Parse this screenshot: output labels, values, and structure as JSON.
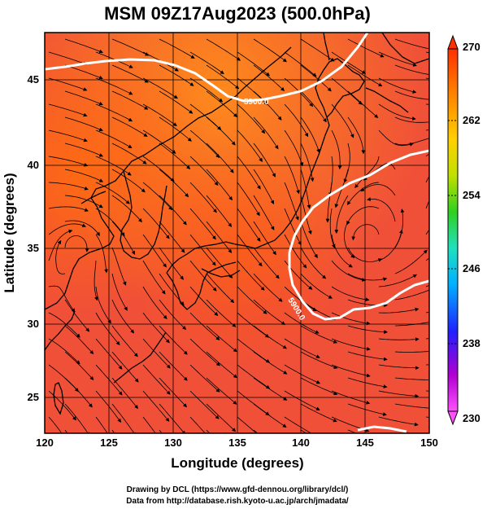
{
  "title": "MSM 09Z17Aug2023 (500.0hPa)",
  "xlabel": "Longitude (degrees)",
  "ylabel": "Latitude  (degrees)",
  "x_ticks": [
    "120",
    "125",
    "130",
    "135",
    "140",
    "145",
    "150"
  ],
  "y_ticks": [
    "25",
    "30",
    "35",
    "40",
    "45"
  ],
  "colorbar": {
    "ticks": [
      "270",
      "262",
      "254",
      "246",
      "238",
      "230"
    ],
    "range": [
      230,
      270
    ],
    "colors": [
      "#ff50ff",
      "#b000d0",
      "#2020ff",
      "#00b0ff",
      "#20e0c0",
      "#30d020",
      "#c0e000",
      "#ffd000",
      "#ff8000",
      "#ff3000"
    ]
  },
  "contour_labels": [
    "5900.0",
    "5900.0"
  ],
  "credits": {
    "line1": "Drawing by DCL (https://www.gfd-dennou.org/library/dcl/)",
    "line2": "Data from http://database.rish.kyoto-u.ac.jp/arch/jmadata/"
  },
  "colors": {
    "field_main": "#f05038",
    "field_warm": "#ff6a20",
    "field_orange": "#ff8c1a",
    "contour": "#ffffff",
    "coast": "#000000"
  }
}
